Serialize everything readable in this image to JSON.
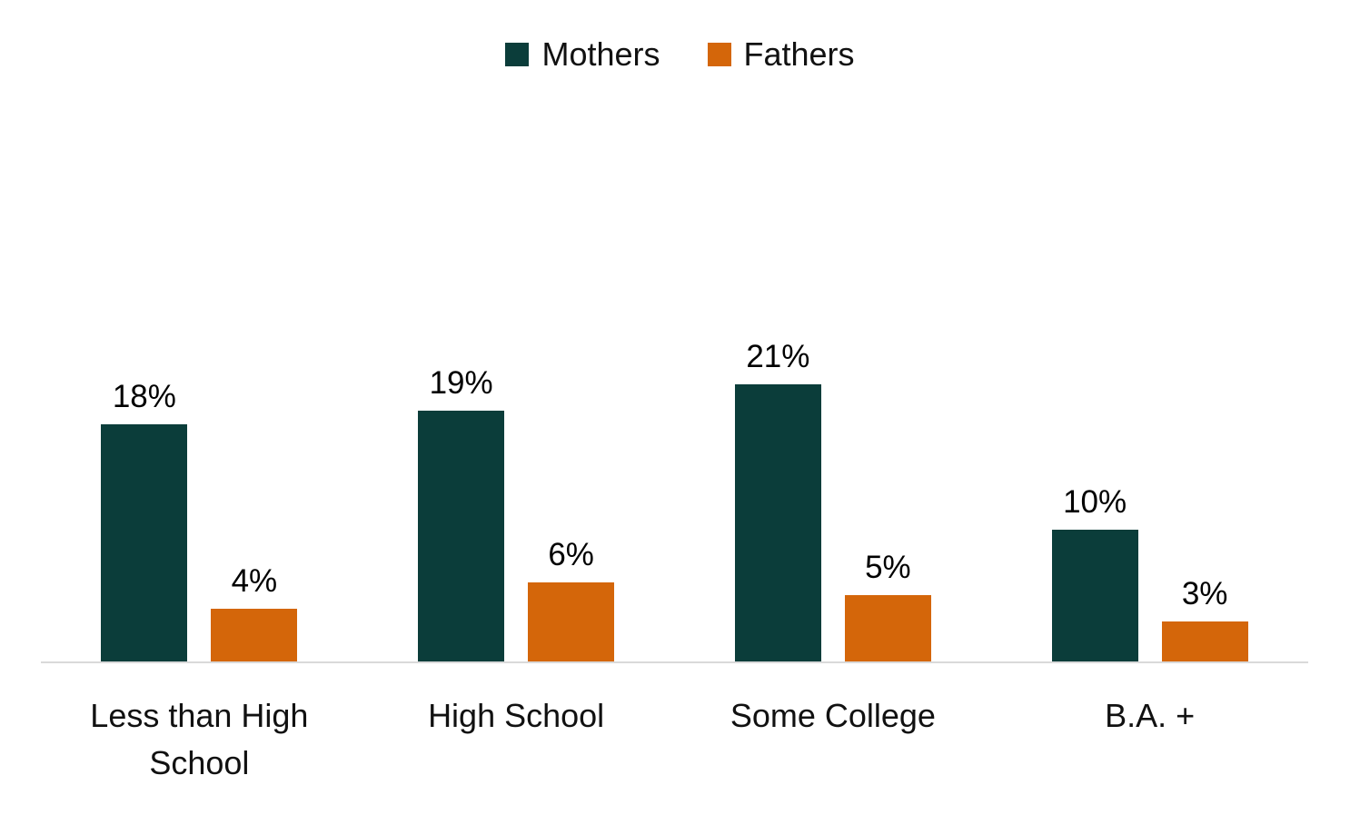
{
  "chart_data": {
    "type": "bar",
    "categories": [
      "Less than High School",
      "High School",
      "Some College",
      "B.A. +"
    ],
    "series": [
      {
        "name": "Mothers",
        "color": "#0b3d3a",
        "values": [
          18,
          19,
          21,
          10
        ]
      },
      {
        "name": "Fathers",
        "color": "#d4660a",
        "values": [
          4,
          6,
          5,
          3
        ]
      }
    ],
    "value_suffix": "%",
    "data_labels": {
      "Mothers": [
        "18%",
        "19%",
        "21%",
        "10%"
      ],
      "Fathers": [
        "4%",
        "6%",
        "5%",
        "3%"
      ]
    },
    "title": "",
    "xlabel": "",
    "ylabel": "",
    "ylim": [
      0,
      22
    ],
    "grid": false,
    "legend_position": "top-center",
    "axis_line_color": "#d9d9d9"
  }
}
